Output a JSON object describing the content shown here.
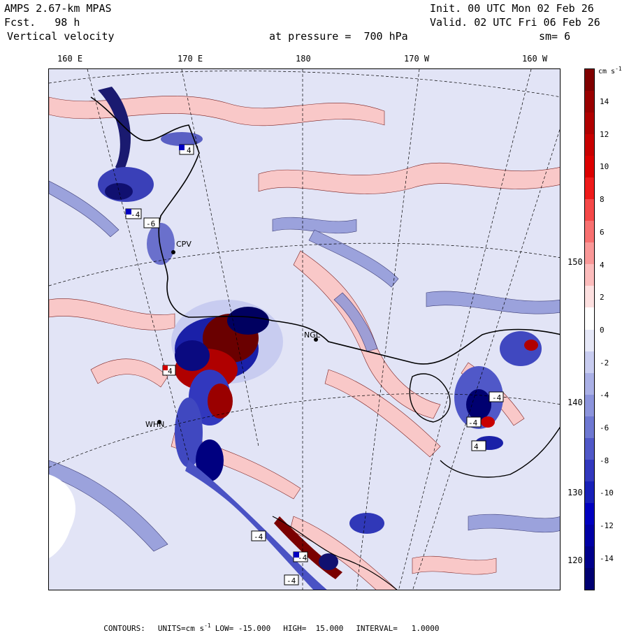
{
  "header": {
    "model": "AMPS 2.67-km MPAS",
    "fcst": "Fcst.   98 h",
    "field": "Vertical velocity",
    "init": "Init. 00 UTC Mon 02 Feb 26",
    "valid": "Valid. 02 UTC Fri 06 Feb 26",
    "pressure": "at pressure =  700 hPa",
    "smooth": "sm= 6"
  },
  "longitude_labels": [
    "160 E",
    "170 E",
    "180",
    "170 W",
    "160 W"
  ],
  "latitude_labels": [
    "150 W",
    "140 W",
    "130 W",
    "120 W"
  ],
  "station_labels": [
    "CPV",
    "NGL",
    "WHN"
  ],
  "map_markers": [
    "4",
    "-6",
    "4",
    "-4",
    "-4",
    "4",
    "-4",
    "-4",
    "-4",
    "-4"
  ],
  "colorbar": {
    "units": "cm s",
    "units_exp": "-1",
    "ticks": [
      "14",
      "12",
      "10",
      "8",
      "6",
      "4",
      "2",
      "0",
      "-2",
      "-4",
      "-6",
      "-8",
      "-10",
      "-12",
      "-14"
    ],
    "colors": [
      "#800000",
      "#9a0000",
      "#b00000",
      "#c80000",
      "#dc0000",
      "#ee1a1a",
      "#f54848",
      "#f87070",
      "#fa9898",
      "#fcbcbc",
      "#fde0e0",
      "#ffffff",
      "#e6e8f8",
      "#c8ccf0",
      "#aab0e6",
      "#8c94dc",
      "#6e78d2",
      "#5058c8",
      "#3238be",
      "#1820b8",
      "#0000c0",
      "#0000a6",
      "#00008c",
      "#000072"
    ]
  },
  "footer": {
    "contours": "CONTOURS:",
    "units_lbl": "UNITS=cm s",
    "units_exp": "-1",
    "low": "LOW= -15.000",
    "high": "HIGH=  15.000",
    "interval": "INTERVAL=   1.0000"
  }
}
